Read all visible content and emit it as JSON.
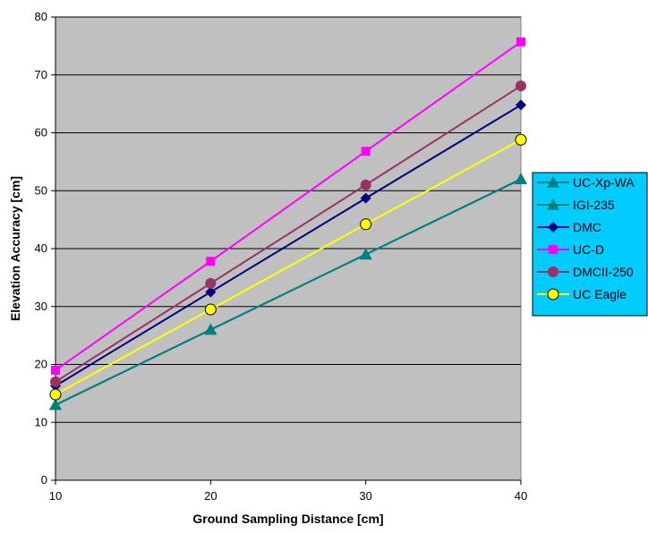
{
  "chart_data": {
    "type": "line",
    "xlabel": "Ground Sampling Distance [cm]",
    "ylabel": "Elevation Accuracy [cm]",
    "x": [
      10,
      20,
      30,
      40
    ],
    "xlim": [
      10,
      40
    ],
    "ylim": [
      0,
      80
    ],
    "xticks": [
      10,
      20,
      30,
      40
    ],
    "yticks": [
      0,
      10,
      20,
      30,
      40,
      50,
      60,
      70,
      80
    ],
    "grid": "horizontal",
    "legend_position": "right",
    "plot_background": "#c0c0c0",
    "legend_background": "#00ccff",
    "series": [
      {
        "name": "UC-Xp-WA",
        "values": [
          13,
          26,
          39,
          52
        ],
        "color": "#008080",
        "marker": "triangle"
      },
      {
        "name": "IGI-235",
        "values": [
          13,
          26,
          39,
          52
        ],
        "color": "#008080",
        "marker": "triangle"
      },
      {
        "name": "DMC",
        "values": [
          16.3,
          32.5,
          48.7,
          64.8
        ],
        "color": "#000080",
        "marker": "diamond"
      },
      {
        "name": "UC-D",
        "values": [
          19,
          37.8,
          56.8,
          75.7
        ],
        "color": "#ff00ff",
        "marker": "square"
      },
      {
        "name": "DMCII-250",
        "values": [
          17,
          34,
          51,
          68.1
        ],
        "color": "#993366",
        "marker": "circle"
      },
      {
        "name": "UC Eagle",
        "values": [
          14.8,
          29.5,
          44.2,
          58.8
        ],
        "color": "#ffff00",
        "marker": "circle-outline"
      }
    ]
  }
}
